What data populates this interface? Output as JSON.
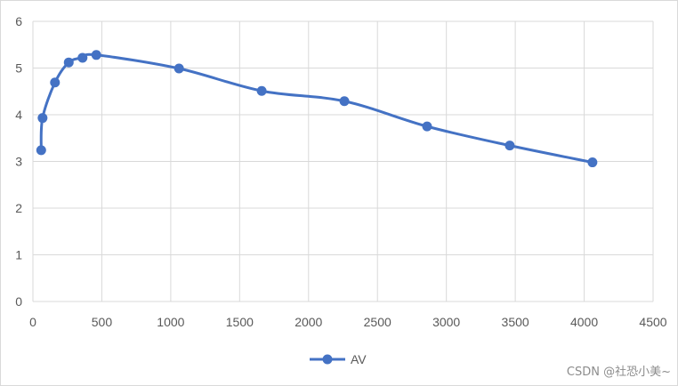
{
  "chart_data": {
    "type": "line",
    "title": "",
    "xlabel": "",
    "ylabel": "",
    "xlim": [
      0,
      4500
    ],
    "ylim": [
      0,
      6
    ],
    "x_ticks": [
      0,
      500,
      1000,
      1500,
      2000,
      2500,
      3000,
      3500,
      4000,
      4500
    ],
    "y_ticks": [
      0,
      1,
      2,
      3,
      4,
      5,
      6
    ],
    "x_tick_labels": [
      "0",
      "500",
      "1000",
      "1500",
      "2000",
      "2500",
      "3000",
      "3500",
      "4000",
      "4500"
    ],
    "y_tick_labels": [
      "0",
      "1",
      "2",
      "3",
      "4",
      "5",
      "6"
    ],
    "grid": true,
    "legend": "bottom",
    "series": [
      {
        "name": "AV",
        "color": "#4472c4",
        "smooth": true,
        "markers": true,
        "x": [
          60,
          70,
          160,
          260,
          360,
          460,
          1060,
          1660,
          2260,
          2860,
          3460,
          4060
        ],
        "y": [
          3.24,
          3.93,
          4.69,
          5.12,
          5.22,
          5.28,
          4.99,
          4.51,
          4.29,
          3.75,
          3.34,
          2.98
        ]
      }
    ]
  },
  "watermark": "CSDN @社恐小美~"
}
